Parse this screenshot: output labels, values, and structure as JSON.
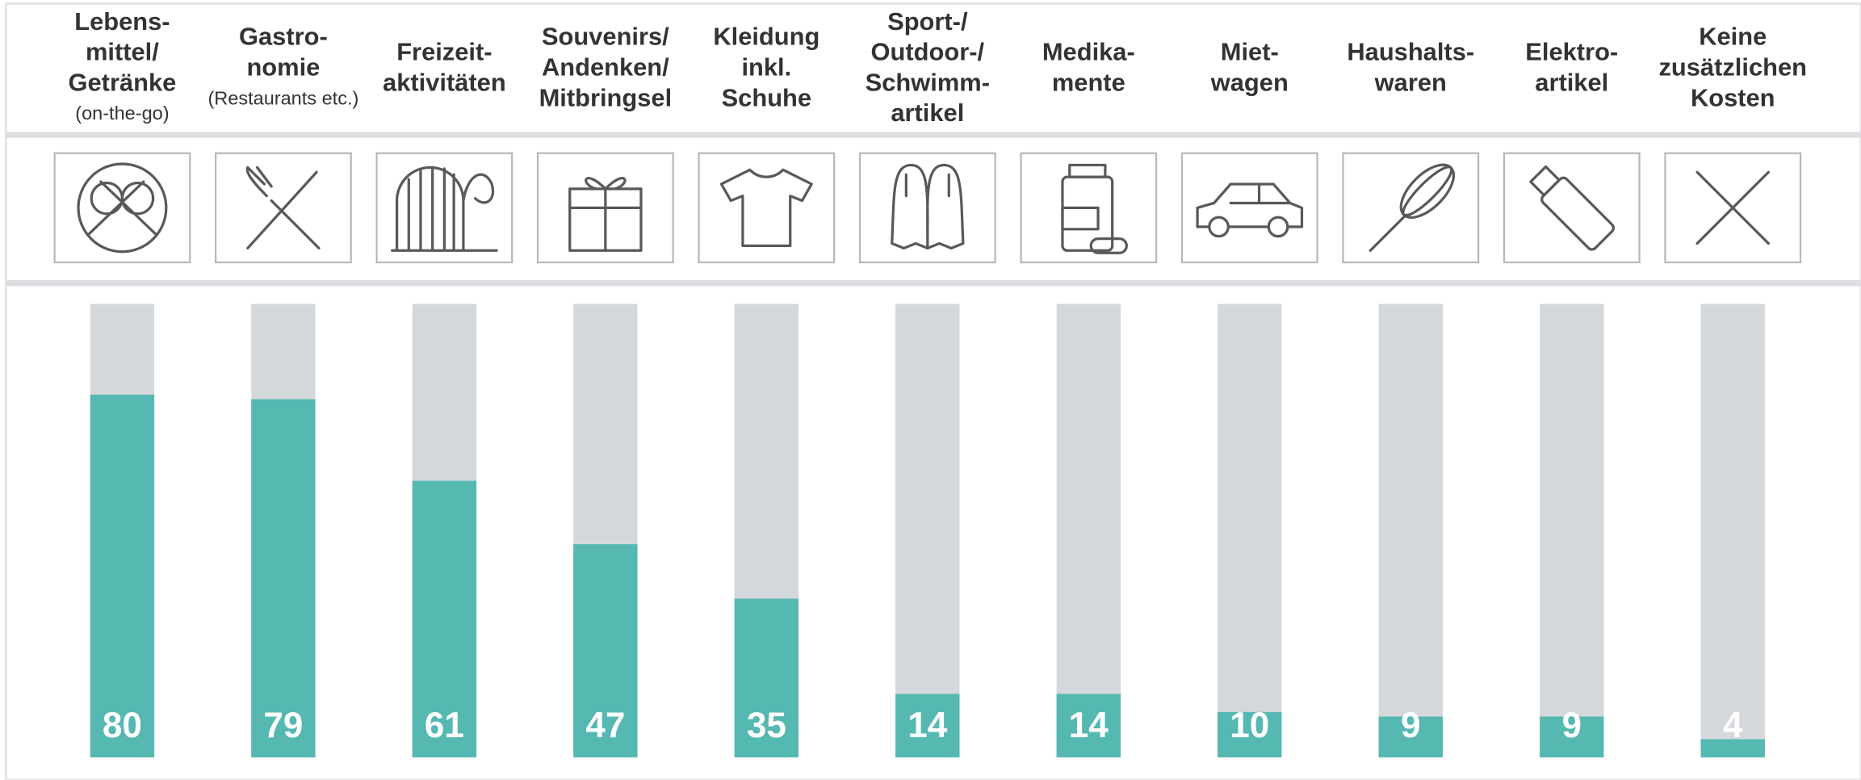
{
  "chart_data": {
    "type": "bar",
    "categories": [
      {
        "label": [
          "Lebens-",
          "mittel/",
          "Getränke"
        ],
        "note": "(on-the-go)"
      },
      {
        "label": [
          "Gastro-",
          "nomie"
        ],
        "note": "(Restaurants etc.)"
      },
      {
        "label": [
          "Freizeit-",
          "aktivitäten"
        ]
      },
      {
        "label": [
          "Souvenirs/",
          "Andenken/",
          "Mitbringsel"
        ]
      },
      {
        "label": [
          "Kleidung",
          "inkl.",
          "Schuhe"
        ]
      },
      {
        "label": [
          "Sport-/",
          "Outdoor-/",
          "Schwimm-",
          "artikel"
        ]
      },
      {
        "label": [
          "Medika-",
          "mente"
        ]
      },
      {
        "label": [
          "Miet-",
          "wagen"
        ]
      },
      {
        "label": [
          "Haushalts-",
          "waren"
        ]
      },
      {
        "label": [
          "Elektro-",
          "artikel"
        ]
      },
      {
        "label": [
          "Keine",
          "zusätzlichen",
          "Kosten"
        ]
      }
    ],
    "values": [
      80,
      79,
      61,
      47,
      35,
      14,
      14,
      10,
      9,
      9,
      4
    ],
    "ylim": [
      0,
      100
    ],
    "color": "#55b8b1",
    "track_color": "#d5d8db"
  }
}
